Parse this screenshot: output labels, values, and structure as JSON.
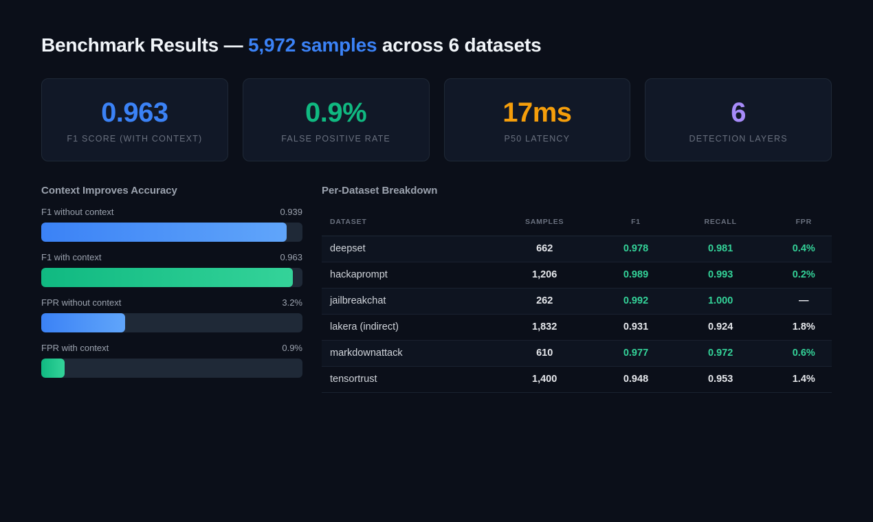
{
  "header": {
    "title_prefix": "Benchmark Results — ",
    "title_accent": "5,972 samples",
    "title_suffix": " across 6 datasets"
  },
  "cards": [
    {
      "value": "0.963",
      "label": "F1 SCORE (WITH CONTEXT)",
      "color": "#3b82f6"
    },
    {
      "value": "0.9%",
      "label": "FALSE POSITIVE RATE",
      "color": "#10b981"
    },
    {
      "value": "17ms",
      "label": "P50 LATENCY",
      "color": "#f59e0b"
    },
    {
      "value": "6",
      "label": "DETECTION LAYERS",
      "color": "#a78bfa"
    }
  ],
  "context": {
    "title": "Context Improves Accuracy",
    "bars": [
      {
        "label": "F1 without context",
        "value": "0.939",
        "fill_fraction": 0.939,
        "color": "blue"
      },
      {
        "label": "F1 with context",
        "value": "0.963",
        "fill_fraction": 0.963,
        "color": "green"
      },
      {
        "label": "FPR without context",
        "value": "3.2%",
        "fill_fraction": 0.32,
        "color": "blue"
      },
      {
        "label": "FPR with context",
        "value": "0.9%",
        "fill_fraction": 0.09,
        "color": "green"
      }
    ]
  },
  "breakdown": {
    "title": "Per-Dataset Breakdown",
    "columns": [
      "DATASET",
      "SAMPLES",
      "F1",
      "RECALL",
      "FPR"
    ],
    "rows": [
      {
        "dataset": "deepset",
        "samples": "662",
        "f1": "0.978",
        "recall": "0.981",
        "fpr": "0.4%",
        "good": true
      },
      {
        "dataset": "hackaprompt",
        "samples": "1,206",
        "f1": "0.989",
        "recall": "0.993",
        "fpr": "0.2%",
        "good": true
      },
      {
        "dataset": "jailbreakchat",
        "samples": "262",
        "f1": "0.992",
        "recall": "1.000",
        "fpr": "—",
        "good": true
      },
      {
        "dataset": "lakera (indirect)",
        "samples": "1,832",
        "f1": "0.931",
        "recall": "0.924",
        "fpr": "1.8%",
        "good": false
      },
      {
        "dataset": "markdownattack",
        "samples": "610",
        "f1": "0.977",
        "recall": "0.972",
        "fpr": "0.6%",
        "good": true
      },
      {
        "dataset": "tensortrust",
        "samples": "1,400",
        "f1": "0.948",
        "recall": "0.953",
        "fpr": "1.4%",
        "good": false
      }
    ]
  }
}
